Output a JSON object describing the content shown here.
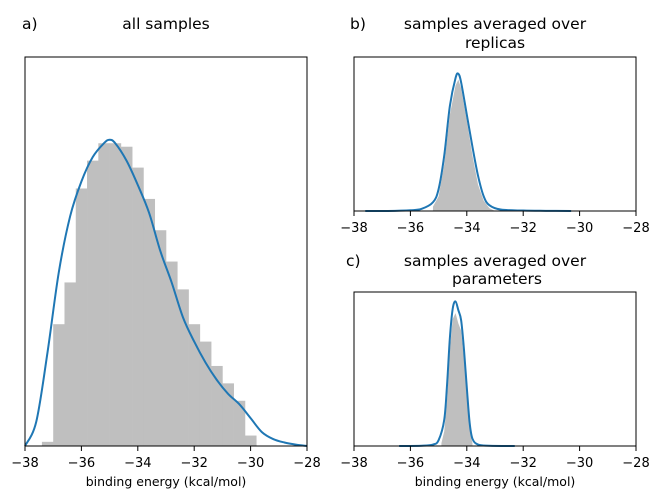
{
  "chart_data": [
    {
      "type": "bar",
      "panel_label": "a)",
      "title": "all samples",
      "xlabel": "binding energy (kcal/mol)",
      "xlim": [
        -38,
        -28
      ],
      "xticks": [
        -38,
        -36,
        -34,
        -32,
        -30,
        -28
      ],
      "tick_labels": [
        "−38",
        "−36",
        "−34",
        "−32",
        "−30",
        "−28"
      ],
      "histogram": {
        "bin_edges": [
          -37.4,
          -37.0,
          -36.6,
          -36.2,
          -35.8,
          -35.4,
          -35.0,
          -34.6,
          -34.2,
          -33.8,
          -33.4,
          -33.0,
          -32.6,
          -32.2,
          -31.8,
          -31.4,
          -31.0,
          -30.6,
          -30.2,
          -29.8
        ],
        "heights": [
          0.012,
          0.35,
          0.47,
          0.74,
          0.82,
          0.87,
          0.87,
          0.86,
          0.8,
          0.71,
          0.62,
          0.53,
          0.45,
          0.35,
          0.3,
          0.23,
          0.18,
          0.13,
          0.03
        ]
      },
      "kde": {
        "x": [
          -38.0,
          -37.6,
          -37.2,
          -36.8,
          -36.4,
          -36.0,
          -35.6,
          -35.2,
          -35.0,
          -34.8,
          -34.4,
          -34.0,
          -33.6,
          -33.2,
          -32.8,
          -32.4,
          -32.0,
          -31.6,
          -31.2,
          -30.8,
          -30.4,
          -30.0,
          -29.6,
          -29.2,
          -28.8,
          -28.4,
          -28.0
        ],
        "y": [
          0.0,
          0.07,
          0.27,
          0.5,
          0.66,
          0.76,
          0.83,
          0.87,
          0.88,
          0.87,
          0.82,
          0.75,
          0.67,
          0.56,
          0.47,
          0.37,
          0.3,
          0.24,
          0.19,
          0.15,
          0.12,
          0.08,
          0.04,
          0.02,
          0.01,
          0.004,
          0.0
        ]
      },
      "ylim": [
        0,
        1.0
      ],
      "colors": {
        "bars": "#bfbfbf",
        "curve": "#1f77b4"
      }
    },
    {
      "type": "area",
      "panel_label": "b)",
      "title": [
        "samples averaged over",
        "replicas"
      ],
      "xlabel": "",
      "xlim": [
        -38,
        -28
      ],
      "xticks": [
        -38,
        -36,
        -34,
        -32,
        -30,
        -28
      ],
      "tick_labels": [
        "−38",
        "−36",
        "−34",
        "−32",
        "−30",
        "−28"
      ],
      "fill_x": [
        -35.2,
        -35.0,
        -34.8,
        -34.6,
        -34.4,
        -34.3,
        -34.2,
        -34.0,
        -33.8,
        -33.6,
        -33.4,
        -33.2,
        -33.0
      ],
      "fill_y": [
        0.03,
        0.1,
        0.32,
        0.66,
        0.86,
        0.9,
        0.84,
        0.62,
        0.38,
        0.18,
        0.07,
        0.02,
        0.0
      ],
      "kde": {
        "x": [
          -37.6,
          -36.8,
          -36.0,
          -35.6,
          -35.2,
          -35.0,
          -34.8,
          -34.6,
          -34.4,
          -34.3,
          -34.2,
          -34.0,
          -33.8,
          -33.6,
          -33.4,
          -33.2,
          -32.8,
          -32.0,
          -31.2,
          -30.3
        ],
        "y": [
          0.0,
          0.0,
          0.005,
          0.015,
          0.06,
          0.15,
          0.38,
          0.72,
          0.91,
          0.94,
          0.88,
          0.66,
          0.44,
          0.24,
          0.1,
          0.04,
          0.01,
          0.003,
          0.001,
          0.0
        ]
      },
      "ylim": [
        0,
        1.0
      ],
      "colors": {
        "fill": "#bfbfbf",
        "curve": "#1f77b4"
      }
    },
    {
      "type": "area",
      "panel_label": "c)",
      "title": [
        "samples averaged over",
        "parameters"
      ],
      "xlabel": "binding energy (kcal/mol)",
      "xlim": [
        -38,
        -28
      ],
      "xticks": [
        -38,
        -36,
        -34,
        -32,
        -30,
        -28
      ],
      "tick_labels": [
        "−38",
        "−36",
        "−34",
        "−32",
        "−30",
        "−28"
      ],
      "fill_x": [
        -34.9,
        -34.8,
        -34.7,
        -34.6,
        -34.5,
        -34.4,
        -34.3,
        -34.2,
        -34.1,
        -34.0,
        -33.9,
        -33.8
      ],
      "fill_y": [
        0.02,
        0.1,
        0.32,
        0.66,
        0.87,
        0.91,
        0.84,
        0.79,
        0.6,
        0.34,
        0.12,
        0.02
      ],
      "kde": {
        "x": [
          -36.4,
          -35.6,
          -35.2,
          -35.0,
          -34.8,
          -34.7,
          -34.6,
          -34.5,
          -34.4,
          -34.3,
          -34.2,
          -34.1,
          -34.0,
          -33.9,
          -33.8,
          -33.6,
          -33.2,
          -32.3
        ],
        "y": [
          0.0,
          0.002,
          0.01,
          0.04,
          0.18,
          0.42,
          0.74,
          0.94,
          0.99,
          0.93,
          0.86,
          0.66,
          0.4,
          0.16,
          0.05,
          0.01,
          0.002,
          0.0
        ]
      },
      "ylim": [
        0,
        1.0
      ],
      "colors": {
        "fill": "#bfbfbf",
        "curve": "#1f77b4"
      }
    }
  ]
}
